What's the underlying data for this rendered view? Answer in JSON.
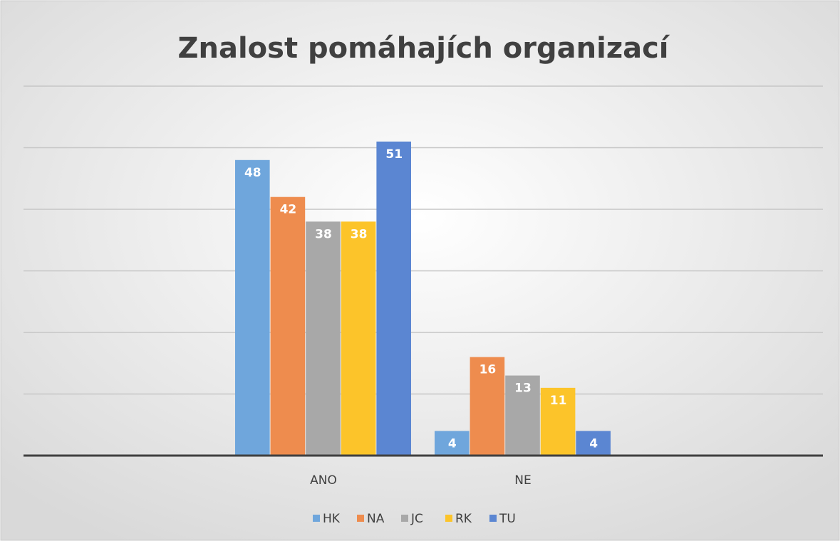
{
  "chart_data": {
    "type": "bar",
    "title": "Znalost pomáhajích organizací",
    "categories": [
      "ANO",
      "NE"
    ],
    "series": [
      {
        "name": "HK",
        "color": "#6fa6dc",
        "values": [
          48,
          4
        ]
      },
      {
        "name": "NA",
        "color": "#ee8c4e",
        "values": [
          42,
          16
        ]
      },
      {
        "name": "JC",
        "color": "#a8a8a8",
        "values": [
          38,
          13
        ]
      },
      {
        "name": "RK",
        "color": "#fcc42a",
        "values": [
          38,
          11
        ]
      },
      {
        "name": "TU",
        "color": "#5b86d2",
        "values": [
          51,
          4
        ]
      }
    ],
    "ylim": [
      0,
      60
    ],
    "yticks": [
      0,
      10,
      20,
      30,
      40,
      50,
      60
    ],
    "grid": true,
    "legend": "bottom"
  }
}
